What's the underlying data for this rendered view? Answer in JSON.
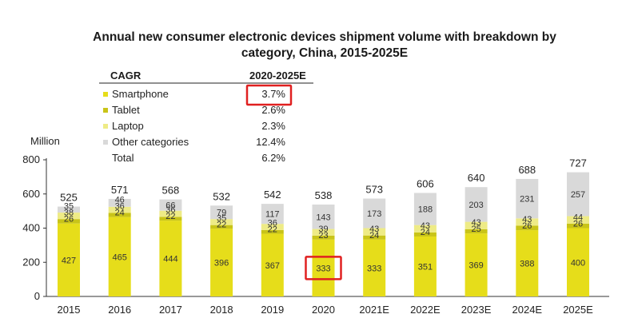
{
  "chart_data": {
    "type": "bar",
    "stacked": true,
    "title": "Annual new consumer electronic devices shipment volume with breakdown by category, China, 2015-2025E",
    "title_lines": [
      "Annual new consumer electronic devices shipment volume with breakdown by",
      "category, China, 2015-2025E"
    ],
    "ylabel": "Million",
    "ylim": [
      0,
      800
    ],
    "yticks": [
      0,
      200,
      400,
      600,
      800
    ],
    "categories": [
      "2015",
      "2016",
      "2017",
      "2018",
      "2019",
      "2020",
      "2021E",
      "2022E",
      "2023E",
      "2024E",
      "2025E"
    ],
    "series": [
      {
        "name": "Smartphone",
        "color": "#e6dd1a",
        "values": [
          427,
          465,
          444,
          396,
          367,
          333,
          333,
          351,
          369,
          388,
          400
        ]
      },
      {
        "name": "Tablet",
        "color": "#c9c418",
        "values": [
          26,
          24,
          22,
          22,
          22,
          23,
          24,
          24,
          25,
          26,
          26
        ]
      },
      {
        "name": "Laptop",
        "color": "#eeeb86",
        "values": [
          38,
          36,
          36,
          35,
          36,
          39,
          43,
          43,
          43,
          43,
          44
        ]
      },
      {
        "name": "Other categories",
        "color": "#d9d9d9",
        "values": [
          35,
          46,
          66,
          79,
          117,
          143,
          173,
          188,
          203,
          231,
          257
        ]
      }
    ],
    "totals": [
      525,
      571,
      568,
      532,
      542,
      538,
      573,
      606,
      640,
      688,
      727
    ],
    "cagr_table": {
      "header_left": "CAGR",
      "header_right": "2020-2025E",
      "rows": [
        {
          "label": "Smartphone",
          "value": "3.7%",
          "color": "#e6dd1a"
        },
        {
          "label": "Tablet",
          "value": "2.6%",
          "color": "#c9c418"
        },
        {
          "label": "Laptop",
          "value": "2.3%",
          "color": "#eeeb86"
        },
        {
          "label": "Other categories",
          "value": "12.4%",
          "color": "#d9d9d9"
        },
        {
          "label": "Total",
          "value": "6.2%",
          "color": null
        }
      ]
    },
    "highlights": [
      "cagr-smartphone",
      "2020-smartphone"
    ]
  }
}
